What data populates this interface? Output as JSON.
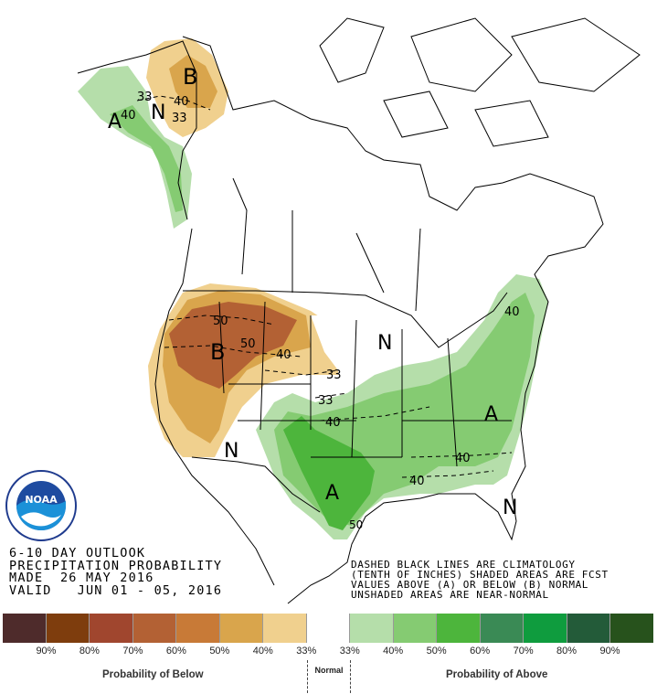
{
  "title": {
    "line1": "6-10 DAY OUTLOOK",
    "line2": "PRECIPITATION PROBABILITY",
    "line3": "MADE  26 MAY 2016",
    "line4": "VALID   JUN 01 - 05, 2016"
  },
  "notes": {
    "line1": "DASHED BLACK LINES ARE CLIMATOLOGY",
    "line2": "(TENTH OF INCHES) SHADED AREAS ARE FCST",
    "line3": "VALUES ABOVE (A) OR BELOW (B) NORMAL",
    "line4": "UNSHADED AREAS ARE NEAR-NORMAL"
  },
  "map_labels": {
    "alaska_b": "B",
    "alaska_n": "N",
    "alaska_a": "A",
    "alaska_33": "33",
    "alaska_40": "40",
    "alaska_33b": "33",
    "alaska_40b": "40",
    "west_b": "B",
    "west_50": "50",
    "west_50b": "50",
    "west_40": "40",
    "west_33": "33",
    "sw_n": "N",
    "south_a": "A",
    "plains_33": "33",
    "plains_40": "40",
    "north_n": "N",
    "east_a": "A",
    "east_40": "40",
    "gulf_40": "40",
    "gulf_50": "50",
    "fl_n": "N",
    "ne_40": "40"
  },
  "legend": {
    "swatch_colors": [
      "#4e2b2b",
      "#7e3d0d",
      "#a0462e",
      "#b36134",
      "#c87a37",
      "#d9a54c",
      "#f0d08e",
      "#ffffff",
      "#b5deaa",
      "#85cb72",
      "#4db53c",
      "#3a8a55",
      "#0f9c3e",
      "#235b39",
      "#27521c"
    ],
    "tick_labels": [
      "90%",
      "80%",
      "70%",
      "60%",
      "50%",
      "40%",
      "33%",
      "33%",
      "40%",
      "50%",
      "60%",
      "70%",
      "80%",
      "90%"
    ],
    "below_caption": "Probability of Below",
    "normal_caption": "Normal",
    "above_caption": "Probability of Above"
  },
  "logo": {
    "text": "NOAA",
    "ring_text": "NATIONAL OCEANIC AND ATMOSPHERIC ADMINISTRATION · U.S. DEPARTMENT OF COMMERCE"
  }
}
